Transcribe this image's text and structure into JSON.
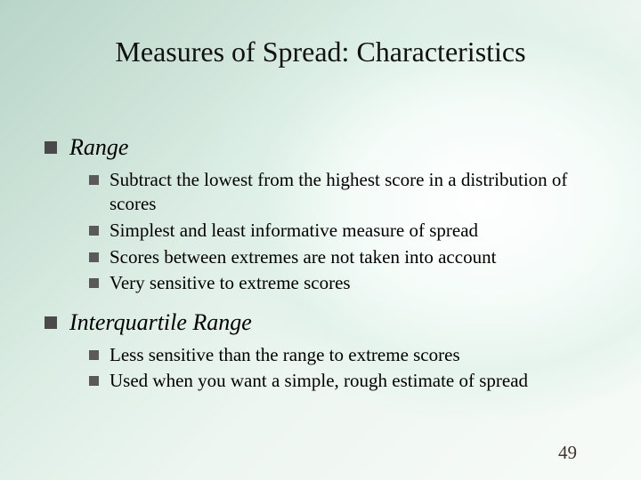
{
  "title": "Measures of Spread: Characteristics",
  "sections": [
    {
      "heading": "Range",
      "items": [
        "Subtract the lowest from the highest score in a distribution of scores",
        "Simplest and least informative measure of spread",
        "Scores between extremes are not taken into account",
        "Very sensitive to extreme scores"
      ]
    },
    {
      "heading": "Interquartile Range",
      "items": [
        "Less sensitive than the range to extreme scores",
        "Used when you want a simple, rough estimate of spread"
      ]
    }
  ],
  "page_number": "49",
  "colors": {
    "title_color": "#111111",
    "text_color": "#000000",
    "bullet_l1": "#4a4a4a",
    "bullet_l2": "#5a5a5a",
    "pagenum_color": "#42352a"
  },
  "typography": {
    "title_fontsize": 32,
    "l1_fontsize": 26,
    "l2_fontsize": 21,
    "font_family": "Times New Roman"
  }
}
